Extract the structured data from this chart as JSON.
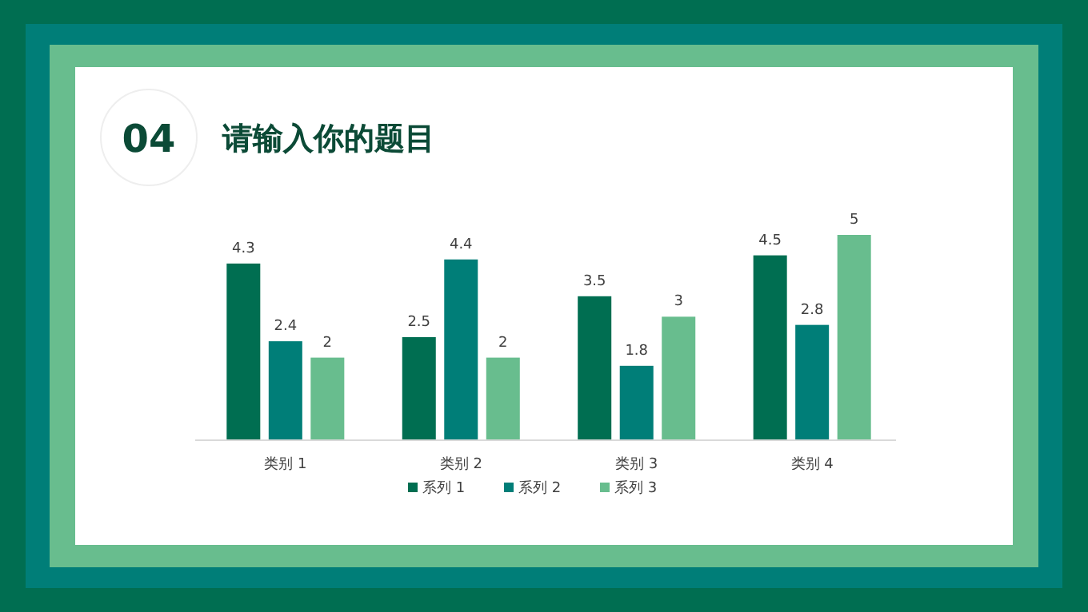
{
  "chart_data": {
    "type": "bar",
    "title": "请输入你的题目",
    "annotations": [
      "04"
    ],
    "categories": [
      "类别 1",
      "类别 2",
      "类别 3",
      "类别 4"
    ],
    "series": [
      {
        "name": "系列 1",
        "color": "#006e51",
        "values": [
          4.3,
          2.5,
          3.5,
          4.5
        ]
      },
      {
        "name": "系列 2",
        "color": "#007e78",
        "values": [
          2.4,
          4.4,
          1.8,
          2.8
        ]
      },
      {
        "name": "系列 3",
        "color": "#68bd8e",
        "values": [
          2,
          2,
          3,
          5
        ]
      }
    ],
    "data_labels": true,
    "legend": "bottom"
  }
}
